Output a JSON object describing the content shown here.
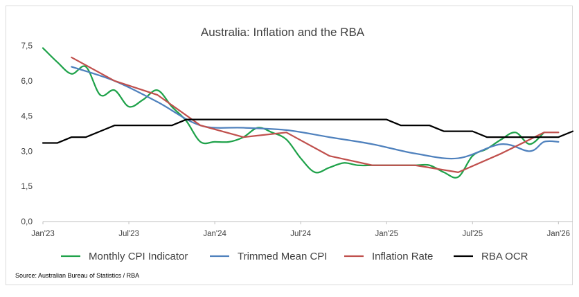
{
  "chart_data": {
    "type": "line",
    "title": "Australia: Inflation and the RBA",
    "source": "Source: Australian Bureau of Statistics / RBA",
    "xlabel": "",
    "ylabel": "",
    "ylim": [
      0,
      7.5
    ],
    "yticks": [
      "0,0",
      "1,5",
      "3,0",
      "4,5",
      "6,0",
      "7,5"
    ],
    "xticks": [
      "Jan'23",
      "Jul'23",
      "Jan'24",
      "Jul'24",
      "Jan'25",
      "Jul'25",
      "Jan'26"
    ],
    "xtick_months": [
      0,
      6,
      12,
      18,
      24,
      30,
      36
    ],
    "xlim_months": [
      0,
      37
    ],
    "grid": false,
    "legend_position": "bottom",
    "series": [
      {
        "name": "Monthly CPI Indicator",
        "color": "#1fa24a",
        "smooth": true,
        "x": [
          0,
          1,
          2,
          3,
          4,
          5,
          6,
          7,
          8,
          9,
          10,
          11,
          12,
          13,
          14,
          15,
          16,
          17,
          18,
          19,
          20,
          21,
          22,
          23,
          24,
          25,
          26,
          27,
          28,
          29,
          30,
          31,
          32,
          33,
          34,
          35
        ],
        "y": [
          7.4,
          6.8,
          6.3,
          6.6,
          5.4,
          5.6,
          4.9,
          5.2,
          5.6,
          4.9,
          4.3,
          3.4,
          3.4,
          3.4,
          3.6,
          4.0,
          3.8,
          3.5,
          2.7,
          2.1,
          2.3,
          2.5,
          2.4,
          2.4,
          2.4,
          2.4,
          2.4,
          2.4,
          2.1,
          1.9,
          2.8,
          3.1,
          3.5,
          3.8,
          3.3,
          3.8
        ]
      },
      {
        "name": "Trimmed Mean CPI",
        "color": "#4f81bd",
        "smooth": true,
        "x": [
          2,
          5,
          8,
          11,
          14,
          17,
          20,
          23,
          26,
          29,
          32,
          34,
          35,
          36
        ],
        "y": [
          6.6,
          6.0,
          5.1,
          4.1,
          4.0,
          3.9,
          3.6,
          3.3,
          2.9,
          2.7,
          3.3,
          3.0,
          3.4,
          3.4
        ]
      },
      {
        "name": "Inflation Rate",
        "color": "#c0504d",
        "smooth": false,
        "x": [
          2,
          5,
          8,
          11,
          14,
          17,
          20,
          23,
          26,
          29,
          32,
          35,
          36
        ],
        "y": [
          7.0,
          6.0,
          5.4,
          4.1,
          3.6,
          3.8,
          2.8,
          2.4,
          2.4,
          2.1,
          2.9,
          3.8,
          3.8
        ]
      },
      {
        "name": "RBA OCR",
        "color": "#000000",
        "smooth": false,
        "x": [
          0,
          1,
          2,
          3,
          4,
          5,
          6,
          7,
          8,
          9,
          10,
          11,
          12,
          13,
          14,
          15,
          16,
          17,
          18,
          19,
          20,
          21,
          22,
          23,
          24,
          25,
          26,
          27,
          28,
          29,
          30,
          31,
          32,
          33,
          34,
          35,
          36,
          37
        ],
        "y": [
          3.35,
          3.35,
          3.6,
          3.6,
          3.85,
          4.1,
          4.1,
          4.1,
          4.1,
          4.1,
          4.35,
          4.35,
          4.35,
          4.35,
          4.35,
          4.35,
          4.35,
          4.35,
          4.35,
          4.35,
          4.35,
          4.35,
          4.35,
          4.35,
          4.35,
          4.1,
          4.1,
          4.1,
          3.85,
          3.85,
          3.85,
          3.6,
          3.6,
          3.6,
          3.6,
          3.6,
          3.6,
          3.85
        ]
      }
    ]
  }
}
